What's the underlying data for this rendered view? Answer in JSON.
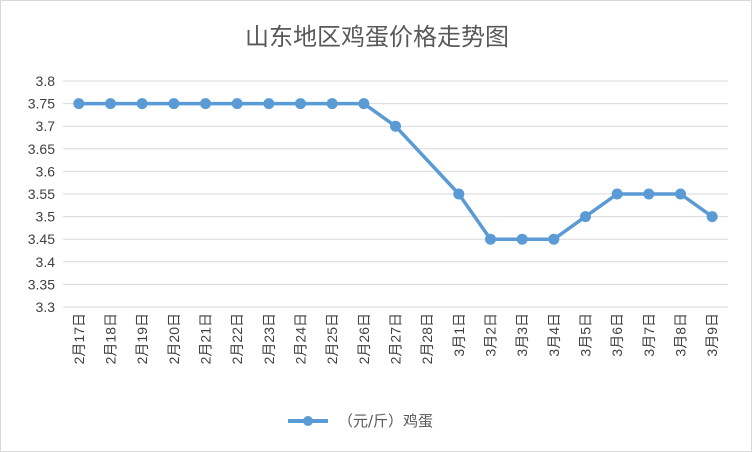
{
  "chart_data": {
    "type": "line",
    "title": "山东地区鸡蛋价格走势图",
    "xlabel": "",
    "ylabel": "",
    "categories": [
      "2月17日",
      "2月18日",
      "2月19日",
      "2月20日",
      "2月21日",
      "2月22日",
      "2月23日",
      "2月24日",
      "2月25日",
      "2月26日",
      "2月27日",
      "2月28日",
      "3月1日",
      "3月2日",
      "3月3日",
      "3月4日",
      "3月5日",
      "3月6日",
      "3月7日",
      "3月8日",
      "3月9日"
    ],
    "series": [
      {
        "name": "（元/斤）鸡蛋",
        "color": "#5b9bd5",
        "values": [
          3.75,
          3.75,
          3.75,
          3.75,
          3.75,
          3.75,
          3.75,
          3.75,
          3.75,
          3.75,
          3.7,
          null,
          3.55,
          3.45,
          3.45,
          3.45,
          3.5,
          3.55,
          3.55,
          3.55,
          3.5
        ]
      }
    ],
    "ylim": [
      3.3,
      3.8
    ],
    "yticks": [
      "3.3",
      "3.35",
      "3.4",
      "3.45",
      "3.5",
      "3.55",
      "3.6",
      "3.65",
      "3.7",
      "3.75",
      "3.8"
    ],
    "grid": true,
    "legend_position": "bottom"
  }
}
